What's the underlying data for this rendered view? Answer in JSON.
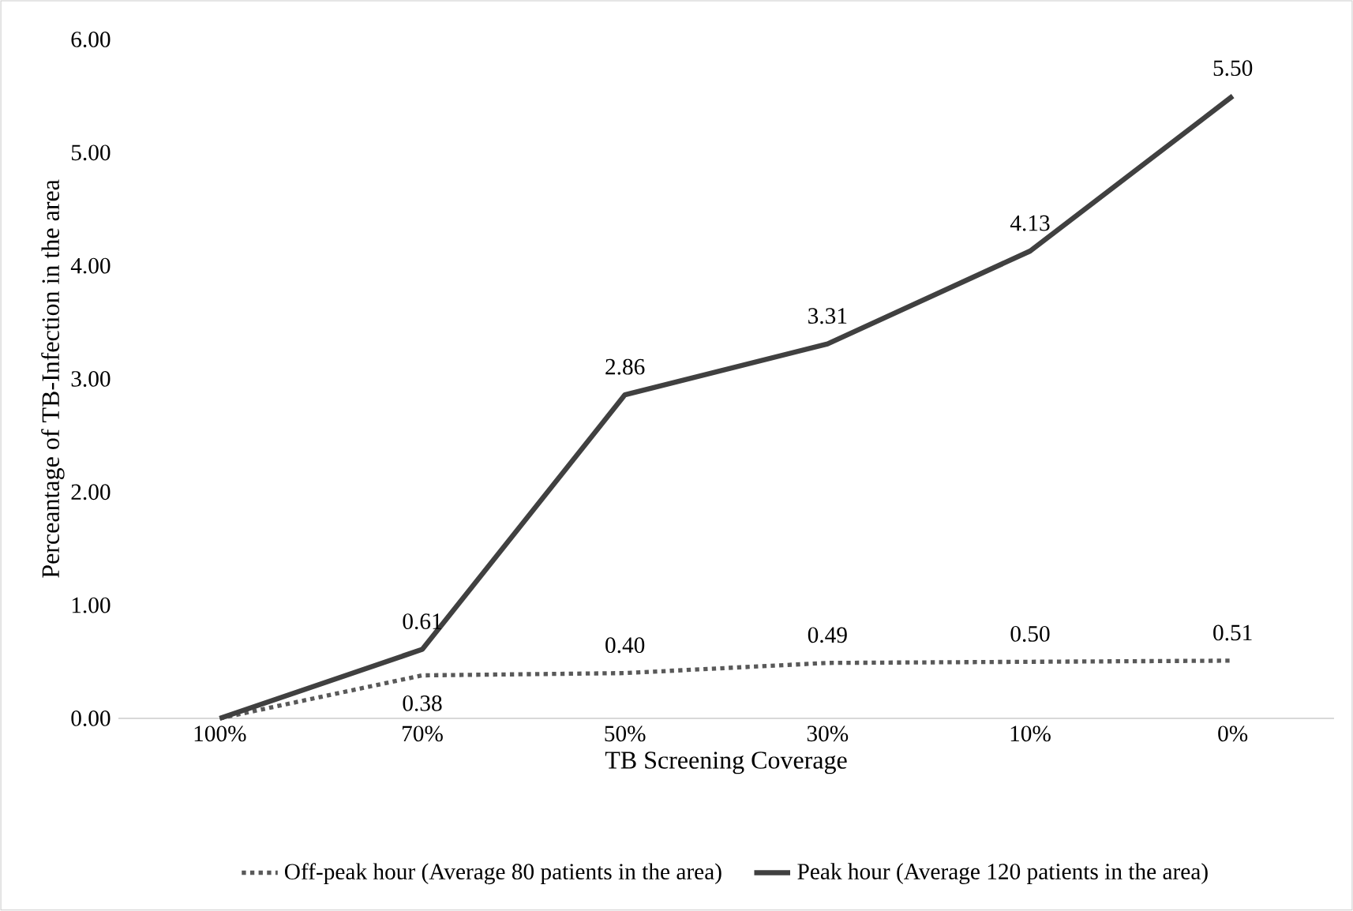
{
  "chart_data": {
    "type": "line",
    "xlabel": "TB Screening Coverage",
    "ylabel": "Perceantage of TB-Infection in the area",
    "categories": [
      "100%",
      "70%",
      "50%",
      "30%",
      "10%",
      "0%"
    ],
    "series": [
      {
        "name": "Off-peak hour (Average 80 patients in the area)",
        "color": "#595959",
        "line_style": "dotted",
        "values": [
          0,
          0.38,
          0.4,
          0.49,
          0.5,
          0.51
        ],
        "value_labels": [
          null,
          "0.38",
          "0.40",
          "0.49",
          "0.50",
          "0.51"
        ]
      },
      {
        "name": "Peak hour (Average 120 patients in the area)",
        "color": "#404040",
        "line_style": "solid",
        "values": [
          0,
          0.61,
          2.86,
          3.31,
          4.13,
          5.5
        ],
        "value_labels": [
          null,
          "0.61",
          "2.86",
          "3.31",
          "4.13",
          "5.50"
        ]
      }
    ],
    "ylim": [
      0,
      6
    ],
    "yticks": [
      {
        "value": 0,
        "label": "0.00"
      },
      {
        "value": 1,
        "label": "1.00"
      },
      {
        "value": 2,
        "label": "2.00"
      },
      {
        "value": 3,
        "label": "3.00"
      },
      {
        "value": 4,
        "label": "4.00"
      },
      {
        "value": 5,
        "label": "5.00"
      },
      {
        "value": 6,
        "label": "6.00"
      }
    ],
    "grid": false,
    "legend": "bottom",
    "marker": "none"
  }
}
